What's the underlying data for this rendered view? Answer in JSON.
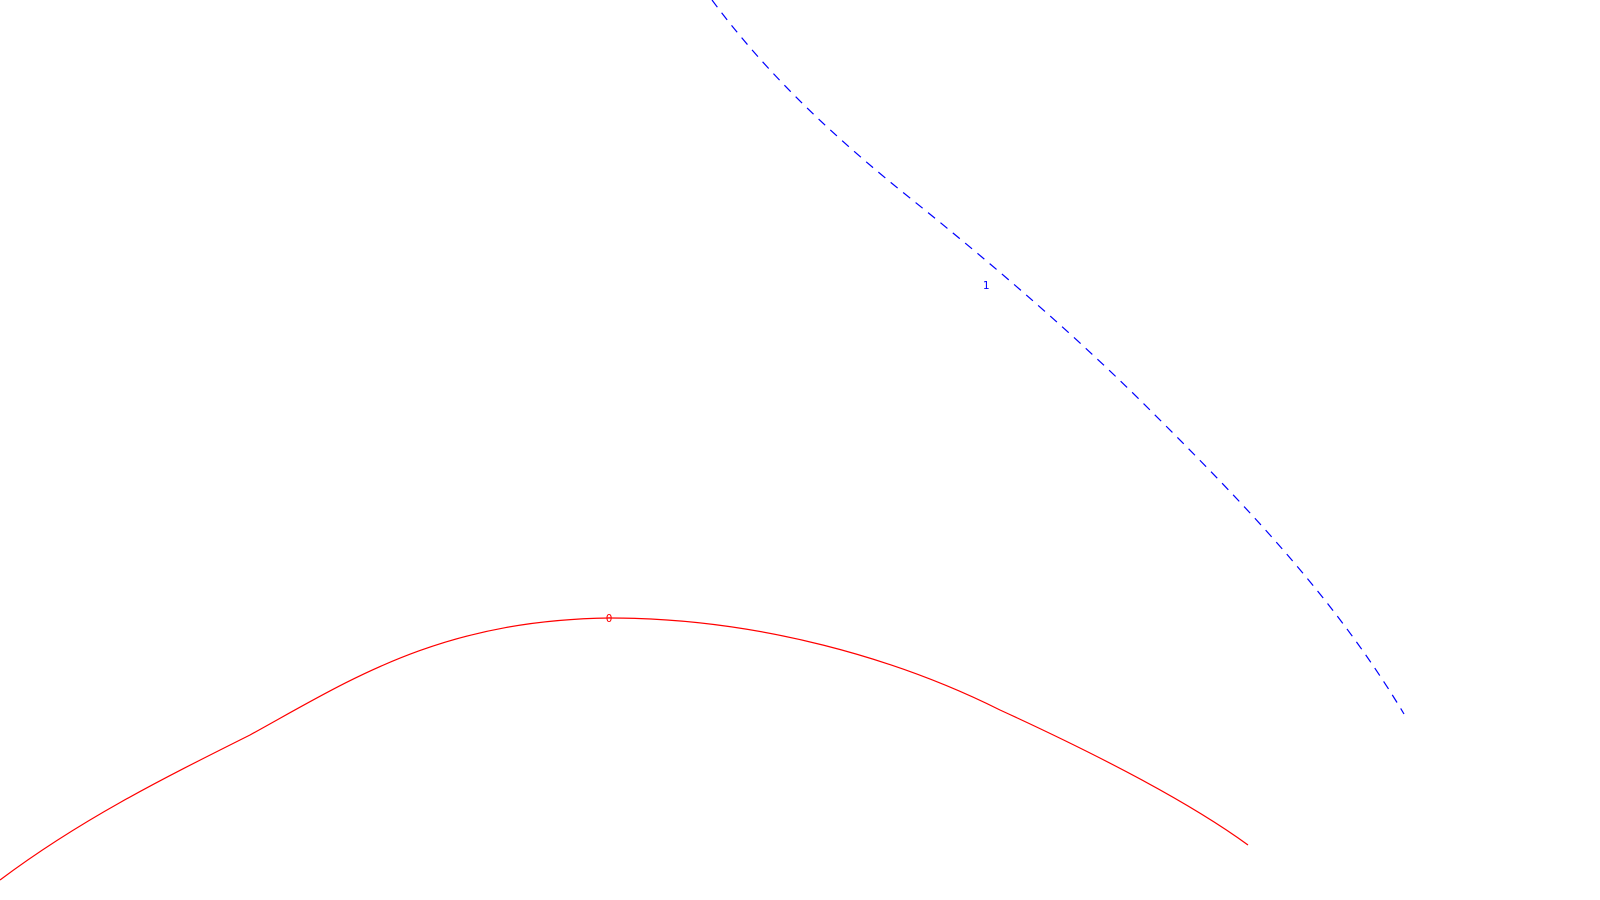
{
  "curves": [
    {
      "label": "0",
      "color": "#ff0000",
      "style": "solid"
    },
    {
      "label": "1",
      "color": "#0000ff",
      "style": "dashed"
    }
  ]
}
